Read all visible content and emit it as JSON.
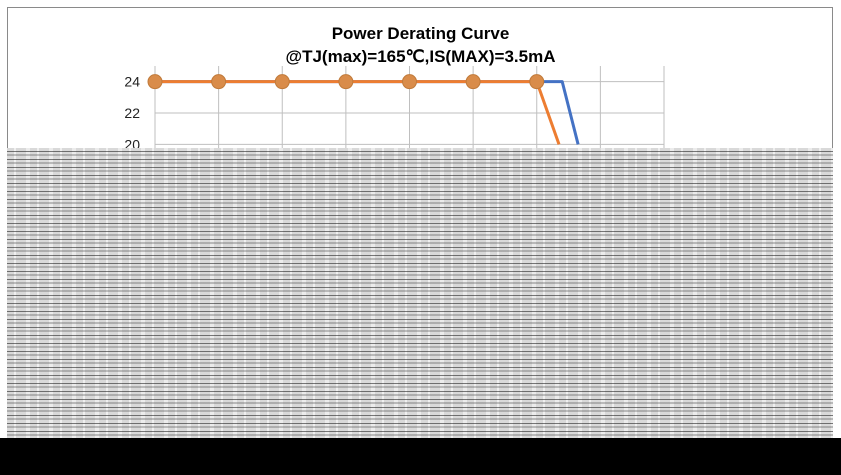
{
  "chart_data": {
    "type": "line",
    "title": "Power Derating Curve",
    "subtitle": "@TJ(max)=165℃,IS(MAX)=3.5mA",
    "ylabel": "",
    "yticks": [
      "24",
      "22",
      "20"
    ],
    "ylim": [
      19,
      25
    ],
    "series": [
      {
        "color": "#4472c4",
        "x": [
          0,
          1,
          2,
          3,
          4,
          5,
          6,
          6.4,
          6.65
        ],
        "y": [
          24,
          24,
          24,
          24,
          24,
          24,
          24,
          24,
          20
        ],
        "markers": false
      },
      {
        "color": "#ed7d31",
        "x": [
          0,
          1,
          2,
          3,
          4,
          5,
          6,
          6.35
        ],
        "y": [
          24,
          24,
          24,
          24,
          24,
          24,
          24,
          20
        ],
        "markers": true
      }
    ],
    "xlim": [
      0,
      8
    ],
    "grid": true
  },
  "colors": {
    "axis": "#a6a6a6",
    "grid": "#bfbfbf",
    "marker_fill": "#d98c4a",
    "marker_edge": "#c07a3a"
  }
}
